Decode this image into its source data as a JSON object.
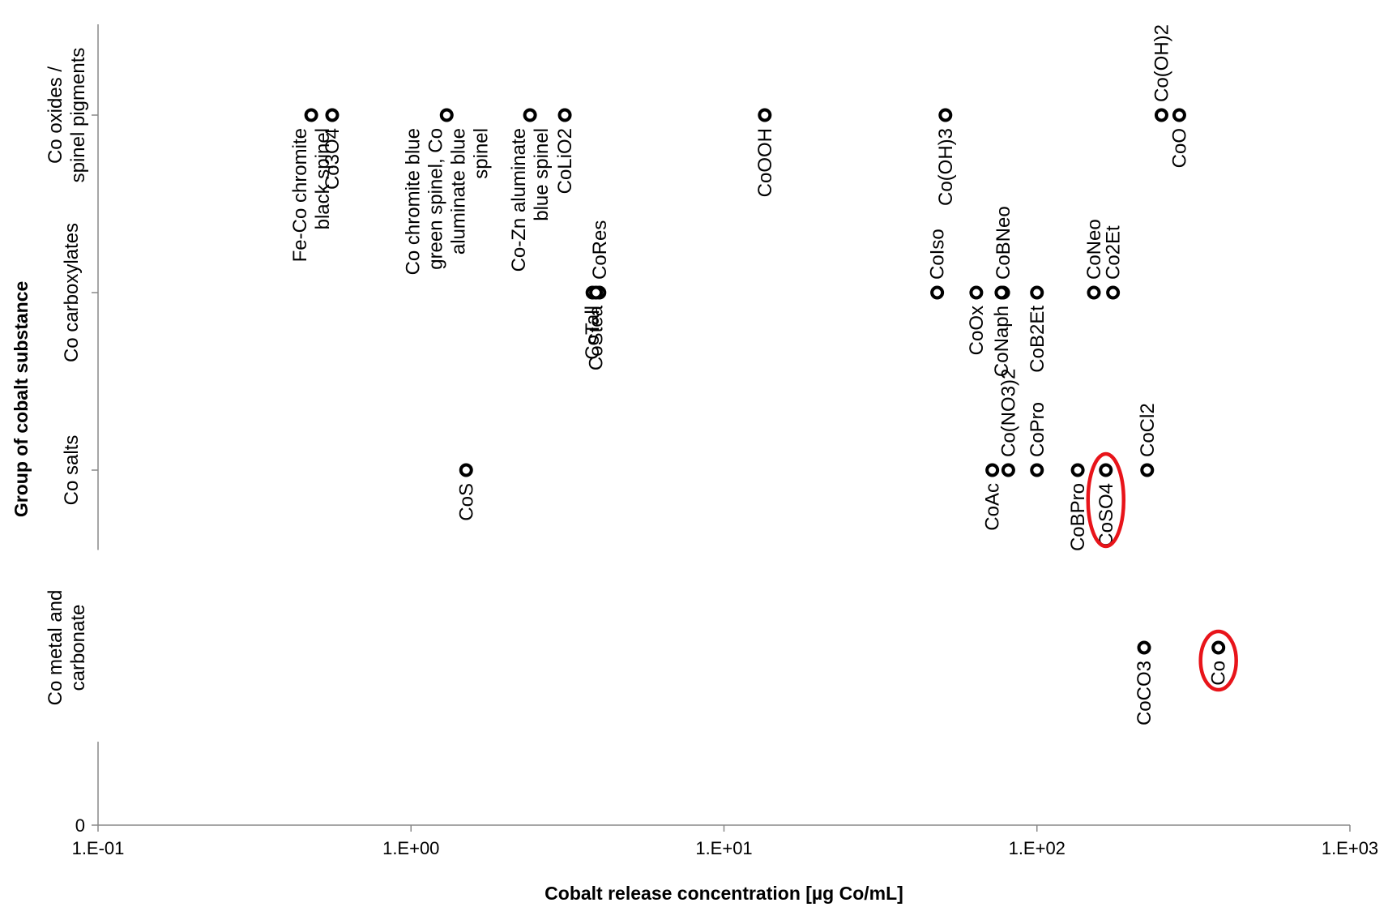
{
  "chart_data": {
    "type": "scatter",
    "xlabel": "Cobalt release concentration [µg Co/mL]",
    "ylabel": "Group of cobalt substance",
    "x_scale": "log",
    "xlim": [
      0.1,
      1000
    ],
    "x_ticks": [
      "1.E-01",
      "1.E+00",
      "1.E+01",
      "1.E+02",
      "1.E+03"
    ],
    "ylim": [
      0,
      5
    ],
    "y_zero_label": "0",
    "categories": [
      {
        "y": 1,
        "label": [
          "Co metal and",
          "carbonate"
        ]
      },
      {
        "y": 2,
        "label": [
          "Co salts"
        ]
      },
      {
        "y": 3,
        "label": [
          "Co carboxylates"
        ]
      },
      {
        "y": 4,
        "label": [
          "Co oxides /",
          "spinel pigments"
        ]
      }
    ],
    "points": [
      {
        "label": [
          "Fe-Co chromite",
          "black spinel"
        ],
        "x": 0.48,
        "y": 4,
        "pos": "below"
      },
      {
        "label": [
          "Co3O4"
        ],
        "x": 0.56,
        "y": 4,
        "pos": "below"
      },
      {
        "label": [
          "Co chromite blue",
          "green spinel, Co",
          "aluminate blue",
          "spinel"
        ],
        "x": 1.3,
        "y": 4,
        "pos": "below"
      },
      {
        "label": [
          "Co-Zn aluminate",
          "blue spinel"
        ],
        "x": 2.4,
        "y": 4,
        "pos": "below"
      },
      {
        "label": [
          "CoLiO2"
        ],
        "x": 3.1,
        "y": 4,
        "pos": "below"
      },
      {
        "label": [
          "CoOOH"
        ],
        "x": 13.5,
        "y": 4,
        "pos": "below"
      },
      {
        "label": [
          "Co(OH)3"
        ],
        "x": 51,
        "y": 4,
        "pos": "below"
      },
      {
        "label": [
          "Co(OH)2"
        ],
        "x": 250,
        "y": 4,
        "pos": "above"
      },
      {
        "label": [
          "CoO"
        ],
        "x": 285,
        "y": 4,
        "pos": "below"
      },
      {
        "label": [
          "CoRes"
        ],
        "x": 4.0,
        "y": 3,
        "pos": "above"
      },
      {
        "label": [
          "CoTall"
        ],
        "x": 3.8,
        "y": 3,
        "pos": "below"
      },
      {
        "label": [
          "CoStea"
        ],
        "x": 3.9,
        "y": 3,
        "pos": "below"
      },
      {
        "label": [
          "CoIso"
        ],
        "x": 48,
        "y": 3,
        "pos": "above"
      },
      {
        "label": [
          "CoOx"
        ],
        "x": 64,
        "y": 3,
        "pos": "below"
      },
      {
        "label": [
          "CoBNeo"
        ],
        "x": 78,
        "y": 3,
        "pos": "above"
      },
      {
        "label": [
          "CoNaph"
        ],
        "x": 77,
        "y": 3,
        "pos": "below"
      },
      {
        "label": [
          "CoB2Et"
        ],
        "x": 100,
        "y": 3,
        "pos": "below"
      },
      {
        "label": [
          "CoNeo"
        ],
        "x": 152,
        "y": 3,
        "pos": "above"
      },
      {
        "label": [
          "Co2Et"
        ],
        "x": 175,
        "y": 3,
        "pos": "above"
      },
      {
        "label": [
          "CoS"
        ],
        "x": 1.5,
        "y": 2,
        "pos": "below"
      },
      {
        "label": [
          "CoAc"
        ],
        "x": 72,
        "y": 2,
        "pos": "below"
      },
      {
        "label": [
          "Co(NO3)2"
        ],
        "x": 81,
        "y": 2,
        "pos": "above"
      },
      {
        "label": [
          "CoPro"
        ],
        "x": 100,
        "y": 2,
        "pos": "above"
      },
      {
        "label": [
          "CoBPro"
        ],
        "x": 135,
        "y": 2,
        "pos": "below"
      },
      {
        "label": [
          "CoSO4"
        ],
        "x": 166,
        "y": 2,
        "pos": "below",
        "highlight": true
      },
      {
        "label": [
          "CoCl2"
        ],
        "x": 225,
        "y": 2,
        "pos": "above"
      },
      {
        "label": [
          "CoCO3"
        ],
        "x": 220,
        "y": 1,
        "pos": "below"
      },
      {
        "label": [
          "Co"
        ],
        "x": 380,
        "y": 1,
        "pos": "below",
        "highlight": true
      }
    ],
    "highlight_color": "#e8141a",
    "marker_color": "#000000",
    "grid": false,
    "legend": "none"
  }
}
